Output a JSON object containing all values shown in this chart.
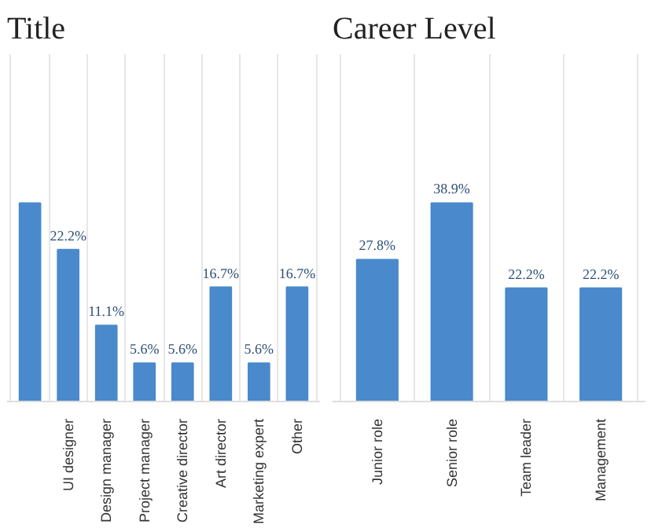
{
  "chart_data": [
    {
      "type": "bar",
      "title": "Title",
      "categories": [
        null,
        "UI designer",
        "Design manager",
        "Project manager",
        "Creative director",
        "Art director",
        "Marketing expert",
        "Other"
      ],
      "values": [
        29,
        22.2,
        11.1,
        5.6,
        5.6,
        16.7,
        5.6,
        16.7
      ],
      "value_labels": [
        null,
        "22.2%",
        "11.1%",
        "5.6%",
        "5.6%",
        "16.7%",
        "5.6%",
        "16.7%"
      ],
      "color": "#4a89cb",
      "grid": "x"
    },
    {
      "type": "bar",
      "title": "Career Level",
      "categories": [
        "Junior role",
        "Senior role",
        "Team leader",
        "Management"
      ],
      "values": [
        27.8,
        38.9,
        22.2,
        22.2
      ],
      "value_labels": [
        "27.8%",
        "38.9%",
        "22.2%",
        "22.2%"
      ],
      "color": "#4a89cb",
      "grid": "x"
    }
  ]
}
